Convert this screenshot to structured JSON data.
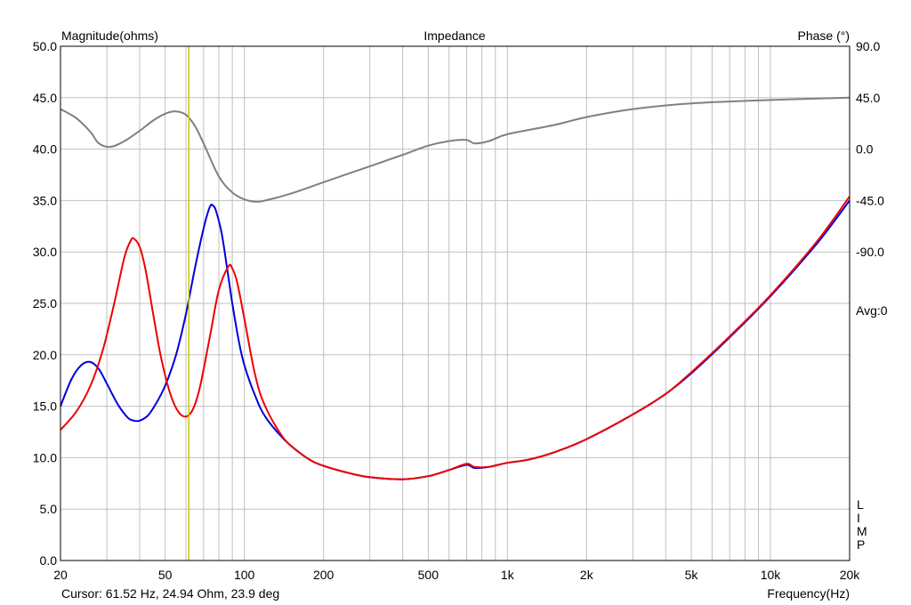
{
  "chart_data": {
    "type": "line",
    "title": "Impedance",
    "left_axis_label": "Magnitude(ohms)",
    "right_axis_label": "Phase (°)",
    "x_axis_label": "Frequency(Hz)",
    "x_scale": "log",
    "xlim": [
      20,
      20000
    ],
    "ylim": [
      0,
      50
    ],
    "phase_lim": [
      -90,
      90
    ],
    "x_ticks": [
      {
        "value": 20,
        "label": "20"
      },
      {
        "value": 50,
        "label": "50"
      },
      {
        "value": 100,
        "label": "100"
      },
      {
        "value": 200,
        "label": "200"
      },
      {
        "value": 500,
        "label": "500"
      },
      {
        "value": 1000,
        "label": "1k"
      },
      {
        "value": 2000,
        "label": "2k"
      },
      {
        "value": 5000,
        "label": "5k"
      },
      {
        "value": 10000,
        "label": "10k"
      },
      {
        "value": 20000,
        "label": "20k"
      }
    ],
    "y_ticks": [
      {
        "value": 0,
        "label": "0.0"
      },
      {
        "value": 5,
        "label": "5.0"
      },
      {
        "value": 10,
        "label": "10.0"
      },
      {
        "value": 15,
        "label": "15.0"
      },
      {
        "value": 20,
        "label": "20.0"
      },
      {
        "value": 25,
        "label": "25.0"
      },
      {
        "value": 30,
        "label": "30.0"
      },
      {
        "value": 35,
        "label": "35.0"
      },
      {
        "value": 40,
        "label": "40.0"
      },
      {
        "value": 45,
        "label": "45.0"
      },
      {
        "value": 50,
        "label": "50.0"
      }
    ],
    "phase_ticks": [
      {
        "value": 90,
        "label": "90.0"
      },
      {
        "value": 45,
        "label": "45.0"
      },
      {
        "value": 0,
        "label": "0.0"
      },
      {
        "value": -45,
        "label": "-45.0"
      },
      {
        "value": -90,
        "label": "-90.0"
      }
    ],
    "avg_label": "Avg:0",
    "side_letters": [
      "L",
      "I",
      "M",
      "P"
    ],
    "cursor": {
      "frequency": 61.52,
      "text": "Cursor: 61.52 Hz, 24.94 Ohm, 23.9 deg"
    },
    "colors": {
      "grid": "#c0c0c0",
      "cursor": "#c8c800",
      "blue": "#0000dd",
      "red": "#ee0000",
      "phase": "#808080"
    },
    "series": [
      {
        "color": "#0000dd",
        "axis": "magnitude",
        "points": [
          [
            20,
            15.0
          ],
          [
            22,
            17.6
          ],
          [
            24,
            19.0
          ],
          [
            26,
            19.3
          ],
          [
            28,
            18.6
          ],
          [
            30,
            17.2
          ],
          [
            33,
            15.2
          ],
          [
            36,
            13.9
          ],
          [
            38,
            13.6
          ],
          [
            40,
            13.6
          ],
          [
            43,
            14.1
          ],
          [
            46,
            15.2
          ],
          [
            50,
            17.0
          ],
          [
            55,
            20.0
          ],
          [
            60,
            24.0
          ],
          [
            65,
            28.5
          ],
          [
            70,
            32.3
          ],
          [
            74,
            34.4
          ],
          [
            76,
            34.5
          ],
          [
            78,
            34.0
          ],
          [
            82,
            31.8
          ],
          [
            86,
            28.4
          ],
          [
            90,
            25.0
          ],
          [
            95,
            21.5
          ],
          [
            100,
            19.0
          ],
          [
            110,
            16.0
          ],
          [
            120,
            14.0
          ],
          [
            140,
            11.9
          ],
          [
            160,
            10.6
          ],
          [
            180,
            9.7
          ],
          [
            200,
            9.2
          ],
          [
            250,
            8.5
          ],
          [
            300,
            8.1
          ],
          [
            400,
            7.9
          ],
          [
            500,
            8.2
          ],
          [
            600,
            8.8
          ],
          [
            700,
            9.3
          ],
          [
            750,
            9.0
          ],
          [
            850,
            9.1
          ],
          [
            1000,
            9.5
          ],
          [
            1200,
            9.8
          ],
          [
            1500,
            10.5
          ],
          [
            2000,
            11.8
          ],
          [
            3000,
            14.2
          ],
          [
            4000,
            16.2
          ],
          [
            5000,
            18.2
          ],
          [
            7000,
            21.7
          ],
          [
            10000,
            25.7
          ],
          [
            15000,
            30.8
          ],
          [
            20000,
            35.0
          ]
        ]
      },
      {
        "color": "#ee0000",
        "axis": "magnitude",
        "points": [
          [
            20,
            12.7
          ],
          [
            23,
            14.5
          ],
          [
            26,
            17.0
          ],
          [
            29,
            20.5
          ],
          [
            32,
            25.0
          ],
          [
            35,
            29.5
          ],
          [
            37,
            31.1
          ],
          [
            38,
            31.3
          ],
          [
            40,
            30.5
          ],
          [
            42,
            28.4
          ],
          [
            45,
            24.0
          ],
          [
            48,
            20.0
          ],
          [
            52,
            16.4
          ],
          [
            56,
            14.5
          ],
          [
            60,
            14.0
          ],
          [
            64,
            14.8
          ],
          [
            68,
            17.0
          ],
          [
            74,
            21.8
          ],
          [
            80,
            26.3
          ],
          [
            87,
            28.6
          ],
          [
            90,
            28.4
          ],
          [
            94,
            27.0
          ],
          [
            100,
            23.5
          ],
          [
            110,
            18.0
          ],
          [
            120,
            15.0
          ],
          [
            140,
            12.0
          ],
          [
            160,
            10.6
          ],
          [
            180,
            9.7
          ],
          [
            200,
            9.2
          ],
          [
            250,
            8.5
          ],
          [
            300,
            8.1
          ],
          [
            400,
            7.9
          ],
          [
            500,
            8.2
          ],
          [
            600,
            8.8
          ],
          [
            700,
            9.4
          ],
          [
            750,
            9.1
          ],
          [
            850,
            9.1
          ],
          [
            1000,
            9.5
          ],
          [
            1200,
            9.8
          ],
          [
            1500,
            10.5
          ],
          [
            2000,
            11.8
          ],
          [
            3000,
            14.2
          ],
          [
            4000,
            16.2
          ],
          [
            5000,
            18.3
          ],
          [
            7000,
            21.8
          ],
          [
            10000,
            25.8
          ],
          [
            15000,
            31.0
          ],
          [
            20000,
            35.4
          ]
        ]
      },
      {
        "color": "#808080",
        "axis": "phase",
        "points": [
          [
            20,
            35
          ],
          [
            23,
            27
          ],
          [
            26,
            15
          ],
          [
            28,
            5
          ],
          [
            31,
            2
          ],
          [
            35,
            7
          ],
          [
            40,
            16
          ],
          [
            45,
            25
          ],
          [
            50,
            31
          ],
          [
            55,
            33
          ],
          [
            60,
            30
          ],
          [
            65,
            20
          ],
          [
            70,
            5
          ],
          [
            80,
            -24
          ],
          [
            90,
            -38
          ],
          [
            100,
            -44
          ],
          [
            110,
            -46
          ],
          [
            120,
            -45
          ],
          [
            150,
            -39
          ],
          [
            200,
            -29
          ],
          [
            300,
            -15
          ],
          [
            400,
            -5
          ],
          [
            500,
            3
          ],
          [
            600,
            7
          ],
          [
            700,
            8
          ],
          [
            750,
            5
          ],
          [
            850,
            7
          ],
          [
            1000,
            13
          ],
          [
            1500,
            21
          ],
          [
            2000,
            28
          ],
          [
            3000,
            35
          ],
          [
            5000,
            40
          ],
          [
            10000,
            43
          ],
          [
            20000,
            45
          ]
        ]
      }
    ]
  }
}
